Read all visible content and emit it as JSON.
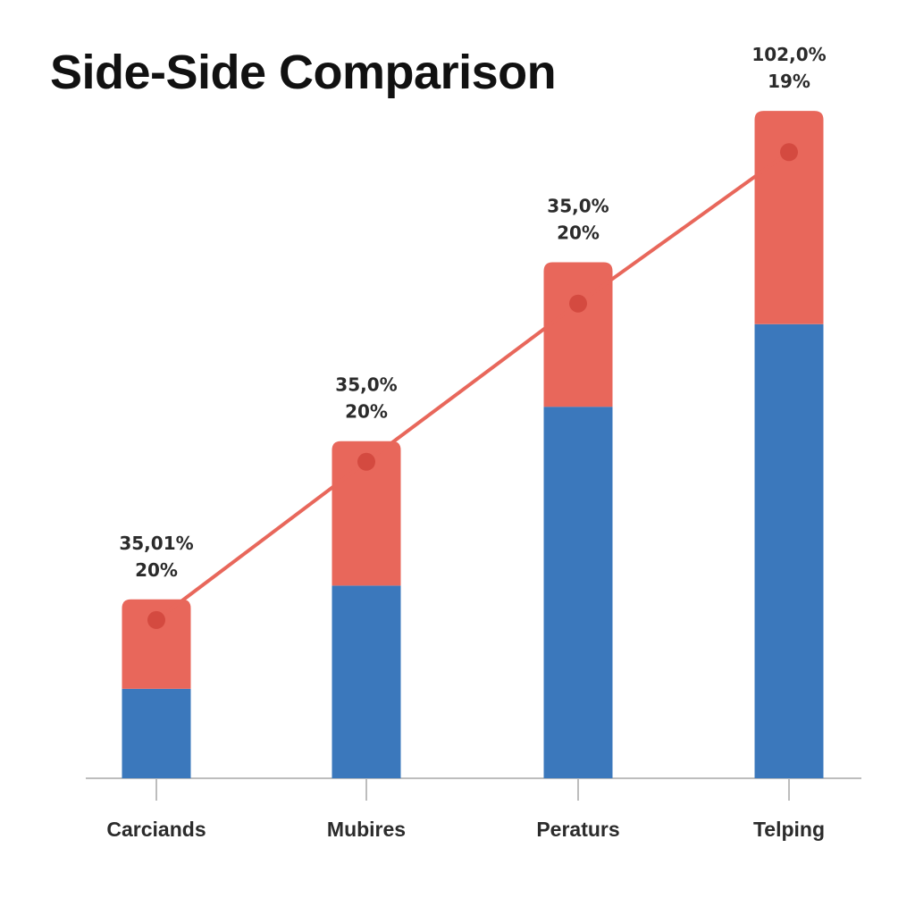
{
  "colors": {
    "bottom_series": "#3b78bc",
    "top_series": "#e8675b",
    "trend_line": "#e8675b",
    "marker": "#d44a40",
    "axis": "#bdbdbd"
  },
  "chart_data": {
    "type": "bar",
    "stacked": true,
    "title": "Side-Side Comparison",
    "xlabel": "",
    "ylabel": "",
    "ylim": [
      0,
      100
    ],
    "grid": false,
    "legend": "none",
    "categories": [
      "Carciands",
      "Mubires",
      "Peraturs",
      "Telping"
    ],
    "series": [
      {
        "values": [
          13,
          28,
          54,
          66
        ]
      },
      {
        "values": [
          13,
          21,
          21,
          31
        ]
      }
    ],
    "trend_line": {
      "values": [
        23,
        46,
        69,
        91
      ]
    },
    "data_labels": [
      {
        "line1": "35,01%",
        "line2": "20%"
      },
      {
        "line1": "35,0%",
        "line2": "20%"
      },
      {
        "line1": "35,0%",
        "line2": "20%"
      },
      {
        "line1": "102,0%",
        "line2": "19%"
      }
    ]
  }
}
